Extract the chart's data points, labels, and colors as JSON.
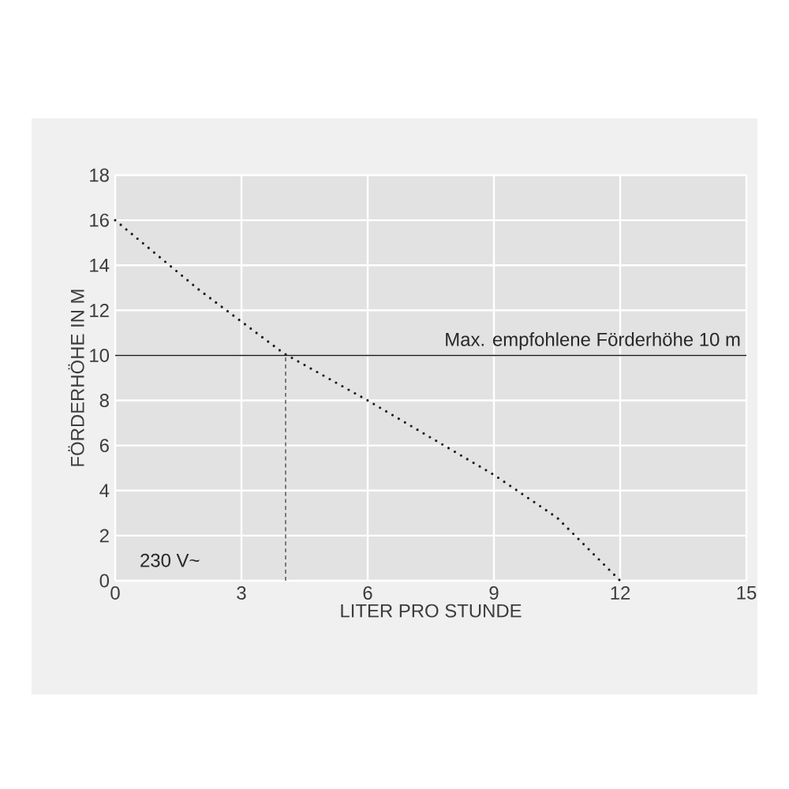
{
  "chart_data": {
    "type": "line",
    "xlabel": "LITER PRO STUNDE",
    "ylabel": "FÖRDERHÖHE IN M",
    "series": [
      {
        "color": "#1a1a1a",
        "line_style": "dotted",
        "x": [
          0,
          2,
          4,
          6,
          9,
          10.5,
          12
        ],
        "values": [
          16,
          12.9,
          10.1,
          8,
          4.7,
          2.8,
          0
        ]
      },
      {
        "color": "#333333",
        "line_style": "dashed",
        "x": [
          4.05,
          4.05
        ],
        "values": [
          0,
          10
        ]
      }
    ],
    "xlim": [
      0,
      15
    ],
    "ylim": [
      0,
      18
    ],
    "xticks": [
      0,
      3,
      6,
      9,
      12,
      15
    ],
    "yticks": [
      0,
      2,
      4,
      6,
      8,
      10,
      12,
      14,
      16,
      18
    ],
    "grid": true,
    "marker": "none",
    "ref_lines": [
      {
        "axis": "y",
        "value": 10,
        "label": "Max. empfohlene Förderhöhe 10 m",
        "color": "#1a1a1a",
        "line_style": "solid"
      }
    ],
    "annotations": [
      "230 V~"
    ]
  }
}
